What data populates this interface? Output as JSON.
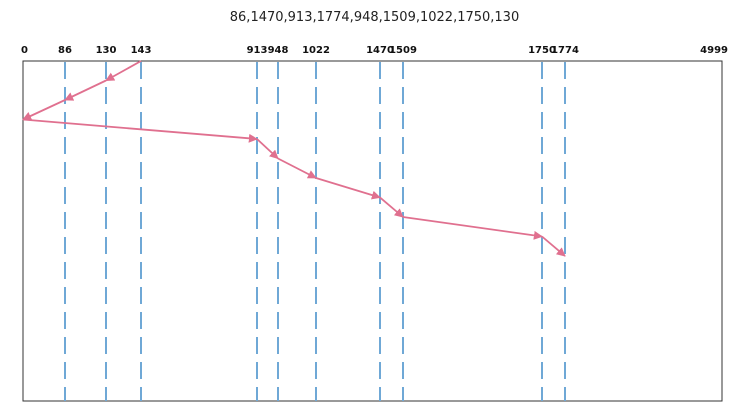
{
  "title": "86,1470,913,1774,948,1509,1022,1750,130",
  "chart_data": {
    "type": "line",
    "description_free": true,
    "axis": {
      "min": 0,
      "max": 4999,
      "tick_labels": [
        "0",
        "86",
        "130",
        "143",
        "913",
        "948",
        "1022",
        "1470",
        "1509",
        "1750",
        "1774",
        "4999"
      ]
    },
    "marked_positions": [
      86,
      130,
      143,
      913,
      948,
      1022,
      1470,
      1509,
      1750,
      1774
    ],
    "path": [
      143,
      130,
      86,
      0,
      913,
      948,
      1022,
      1470,
      1509,
      1750,
      1774
    ],
    "colors": {
      "path": "#e0708f",
      "marker_lines": "#6fa8d6",
      "border": "#333333"
    },
    "grid": false
  }
}
